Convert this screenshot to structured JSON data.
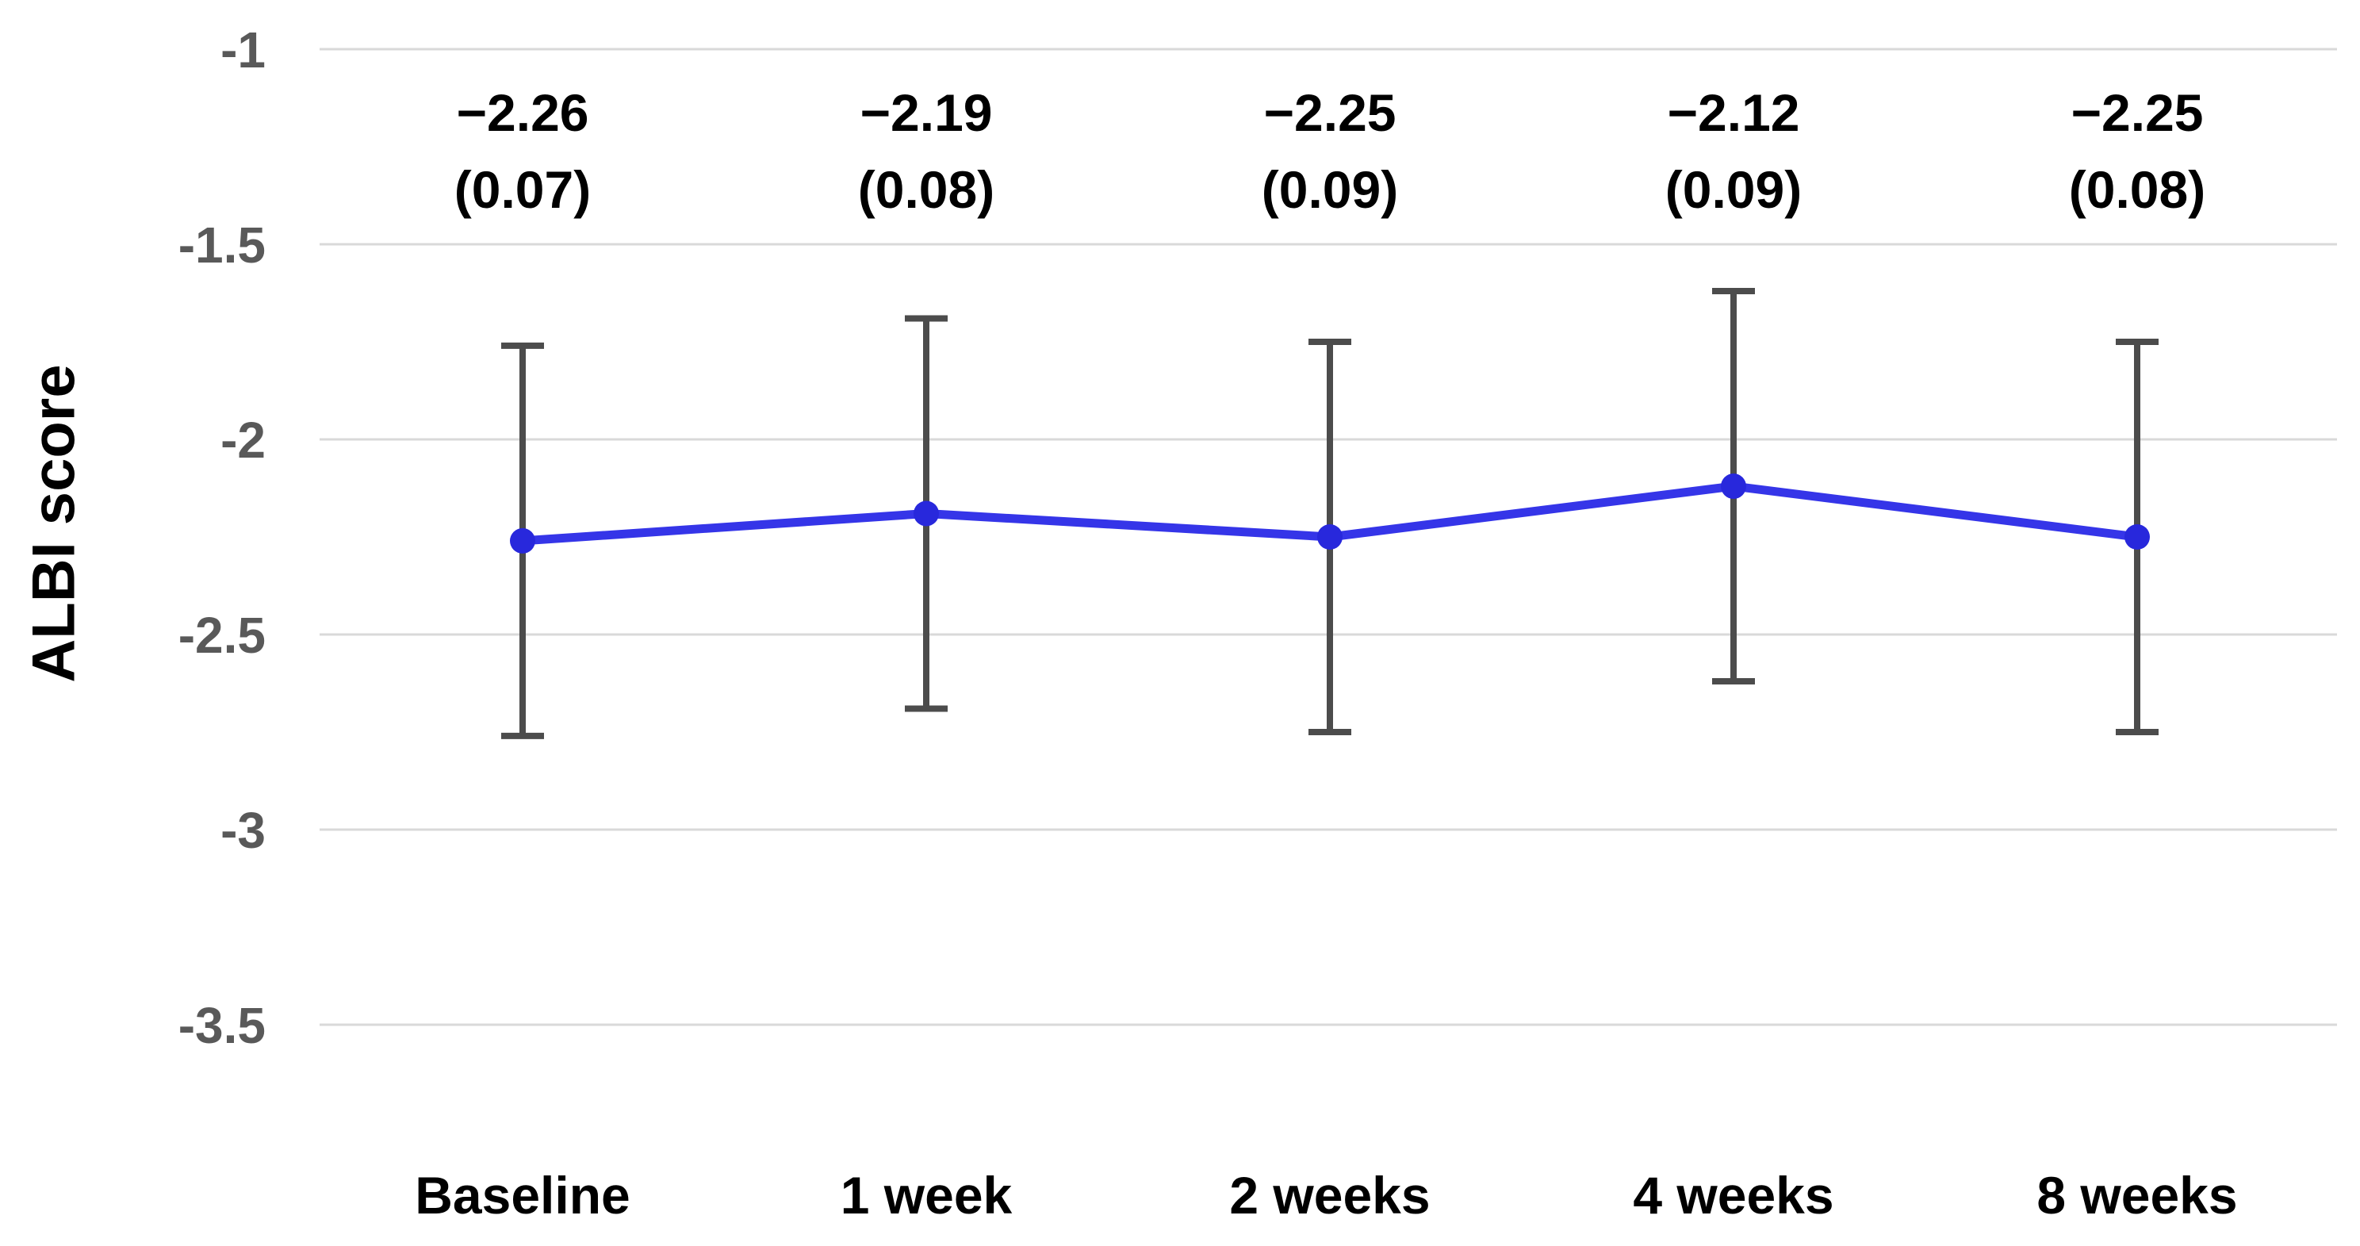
{
  "chart_data": {
    "type": "line",
    "title": "",
    "xlabel": "",
    "ylabel": "ALBI score",
    "categories": [
      "Baseline",
      "1 week",
      "2 weeks",
      "4 weeks",
      "8 weeks"
    ],
    "series": [
      {
        "name": "ALBI score",
        "values": [
          -2.26,
          -2.19,
          -2.25,
          -2.12,
          -2.25
        ],
        "value_labels": [
          "−2.26",
          "−2.19",
          "−2.25",
          "−2.12",
          "−2.25"
        ],
        "se_labels": [
          "(0.07)",
          "(0.08)",
          "(0.09)",
          "(0.09)",
          "(0.08)"
        ],
        "error_bar_half_height": 0.5
      }
    ],
    "yticks": [
      -1,
      -1.5,
      -2,
      -2.5,
      -3,
      -3.5
    ],
    "ytick_labels": [
      "-1",
      "-1.5",
      "-2",
      "-2.5",
      "-3",
      "-3.5"
    ],
    "ylim": [
      -3.85,
      -1
    ],
    "grid": true,
    "legend_position": "none",
    "colors": {
      "line": "#3535e8",
      "marker": "#2828dc",
      "error_bar": "#4c4c4c",
      "gridline": "#d9d9d9",
      "tick_text": "#595959",
      "label_text": "#000000"
    }
  }
}
